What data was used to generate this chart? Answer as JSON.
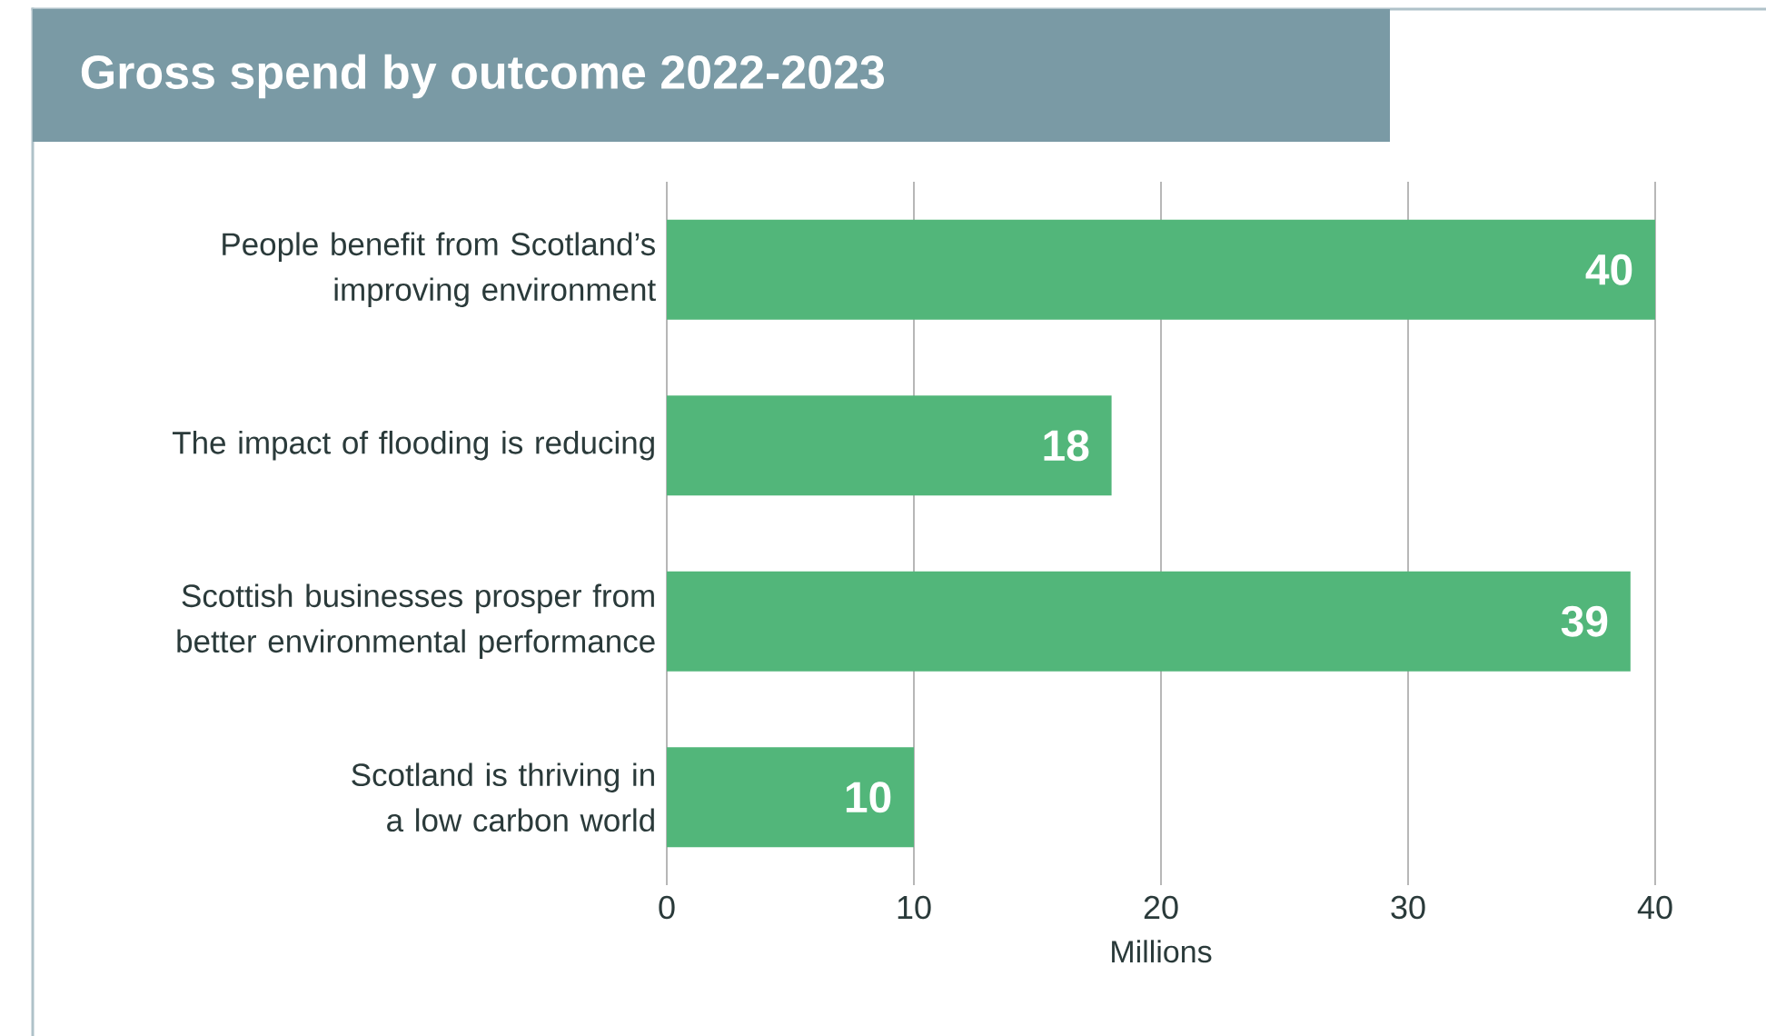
{
  "chart_data": {
    "type": "bar",
    "orientation": "horizontal",
    "title": "Gross spend by outcome 2022-2023",
    "categories": [
      "People benefit from Scotland’s improving environment",
      "The impact of flooding is reducing",
      "Scottish businesses prosper from better environmental performance",
      "Scotland is thriving in a low carbon world"
    ],
    "values": [
      40,
      18,
      39,
      10
    ],
    "color": "#52b67a",
    "xlabel": "Millions",
    "xlim": [
      0,
      40
    ],
    "xticks": [
      0,
      10,
      20,
      30,
      40
    ],
    "grid": "x",
    "data_labels": true
  }
}
